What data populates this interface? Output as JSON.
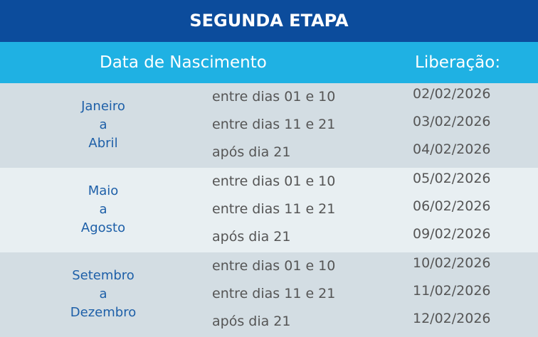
{
  "header": {
    "title": "SEGUNDA ETAPA"
  },
  "table": {
    "columns": [
      "Data de Nascimento",
      "Liberação:"
    ],
    "groups": [
      {
        "label": [
          "Janeiro",
          "a",
          "Abril"
        ],
        "rows": [
          [
            "entre dias 01 e 10",
            "02/02/2026"
          ],
          [
            "entre dias 11 e 21",
            "03/02/2026"
          ],
          [
            "após dia 21",
            "04/02/2026"
          ]
        ]
      },
      {
        "label": [
          "Maio",
          "a",
          "Agosto"
        ],
        "rows": [
          [
            "entre dias 01 e 10",
            "05/02/2026"
          ],
          [
            "entre dias 11 e 21",
            "06/02/2026"
          ],
          [
            "após dia 21",
            "09/02/2026"
          ]
        ]
      },
      {
        "label": [
          "Setembro",
          "a",
          "Dezembro"
        ],
        "rows": [
          [
            "entre dias 01 e 10",
            "10/02/2026"
          ],
          [
            "entre dias 11 e 21",
            "11/02/2026"
          ],
          [
            "após dia 21",
            "12/02/2026"
          ]
        ]
      }
    ]
  }
}
